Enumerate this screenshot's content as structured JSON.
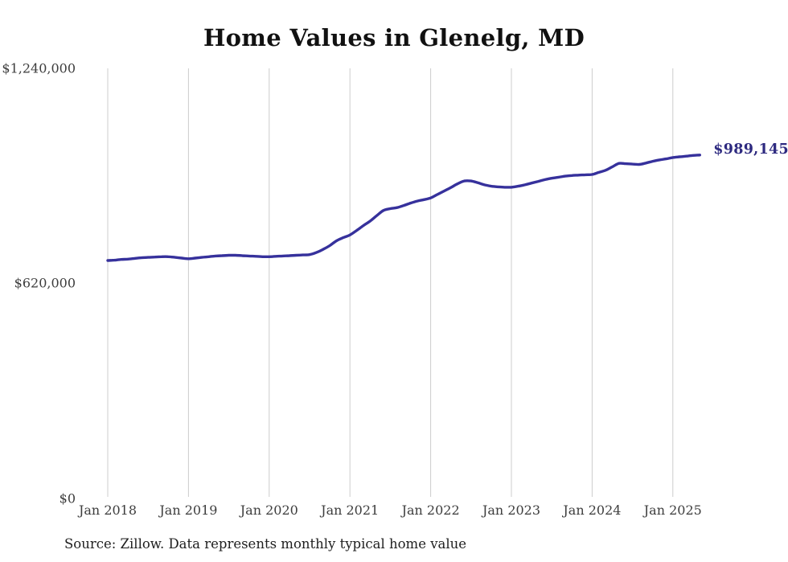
{
  "title": "Home Values in Glenelg, MD",
  "end_label": "$989,145",
  "source": "Source: Zillow. Data represents monthly typical home value",
  "colors": {
    "line": "#36319c",
    "end_label": "#2e2a80",
    "grid": "#cccccc",
    "axis_text": "#3d3d3d",
    "title_text": "#111111",
    "source_text": "#1f1f1f",
    "background": "#ffffff"
  },
  "y_axis": {
    "ticks": [
      {
        "label": "$1,240,000",
        "value": 1240000
      },
      {
        "label": "$620,000",
        "value": 620000
      },
      {
        "label": "$0",
        "value": 0
      }
    ]
  },
  "x_axis": {
    "ticks": [
      "Jan 2018",
      "Jan 2019",
      "Jan 2020",
      "Jan 2021",
      "Jan 2022",
      "Jan 2023",
      "Jan 2024",
      "Jan 2025"
    ]
  },
  "chart_data": {
    "type": "line",
    "title": "Home Values in Glenelg, MD",
    "xlabel": "",
    "ylabel": "",
    "ylim": [
      0,
      1240000
    ],
    "grid": "vertical-only",
    "legend": "none",
    "series_name": "Typical home value (monthly)",
    "x_start": "2018-01",
    "x_end": "2025-05",
    "x": [
      "2018-01",
      "2018-02",
      "2018-03",
      "2018-04",
      "2018-05",
      "2018-06",
      "2018-07",
      "2018-08",
      "2018-09",
      "2018-10",
      "2018-11",
      "2018-12",
      "2019-01",
      "2019-02",
      "2019-03",
      "2019-04",
      "2019-05",
      "2019-06",
      "2019-07",
      "2019-08",
      "2019-09",
      "2019-10",
      "2019-11",
      "2019-12",
      "2020-01",
      "2020-02",
      "2020-03",
      "2020-04",
      "2020-05",
      "2020-06",
      "2020-07",
      "2020-08",
      "2020-09",
      "2020-10",
      "2020-11",
      "2020-12",
      "2021-01",
      "2021-02",
      "2021-03",
      "2021-04",
      "2021-05",
      "2021-06",
      "2021-07",
      "2021-08",
      "2021-09",
      "2021-10",
      "2021-11",
      "2021-12",
      "2022-01",
      "2022-02",
      "2022-03",
      "2022-04",
      "2022-05",
      "2022-06",
      "2022-07",
      "2022-08",
      "2022-09",
      "2022-10",
      "2022-11",
      "2022-12",
      "2023-01",
      "2023-02",
      "2023-03",
      "2023-04",
      "2023-05",
      "2023-06",
      "2023-07",
      "2023-08",
      "2023-09",
      "2023-10",
      "2023-11",
      "2023-12",
      "2024-01",
      "2024-02",
      "2024-03",
      "2024-04",
      "2024-05",
      "2024-06",
      "2024-07",
      "2024-08",
      "2024-09",
      "2024-10",
      "2024-11",
      "2024-12",
      "2025-01",
      "2025-02",
      "2025-03",
      "2025-04",
      "2025-05"
    ],
    "values": [
      684000,
      685000,
      687000,
      688000,
      690000,
      692000,
      693000,
      694000,
      695000,
      695000,
      693000,
      691000,
      689000,
      691000,
      693000,
      695000,
      697000,
      698000,
      699000,
      699000,
      698000,
      697000,
      696000,
      695000,
      695000,
      696000,
      697000,
      698000,
      699000,
      700000,
      701000,
      707000,
      716000,
      727000,
      741000,
      750000,
      758000,
      771000,
      785000,
      798000,
      814000,
      829000,
      834000,
      837000,
      843000,
      850000,
      856000,
      860000,
      865000,
      875000,
      885000,
      895000,
      906000,
      914000,
      914000,
      909000,
      903000,
      899000,
      897000,
      896000,
      896000,
      899000,
      903000,
      908000,
      913000,
      918000,
      922000,
      925000,
      928000,
      930000,
      931000,
      932000,
      933000,
      939000,
      945000,
      955000,
      965000,
      964000,
      963000,
      962000,
      966000,
      971000,
      975000,
      978000,
      982000,
      984000,
      986000,
      988000,
      989145
    ],
    "annotations": [
      {
        "text": "$989,145",
        "x": "2025-05",
        "y": 989145,
        "position": "right-of-line-end"
      }
    ]
  }
}
